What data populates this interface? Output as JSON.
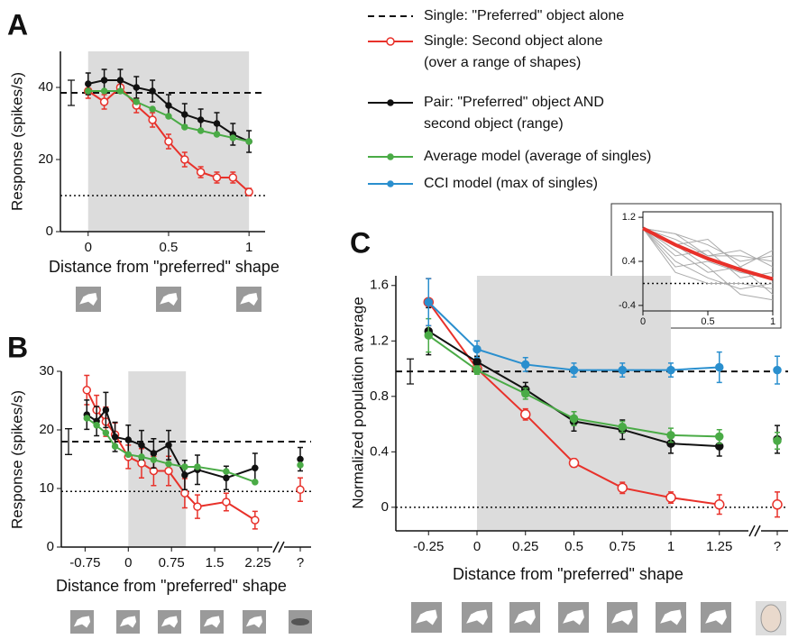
{
  "chart_data": [
    {
      "type": "line",
      "panel_label": "A",
      "xlabel": "Distance from \"preferred\" shape",
      "ylabel": "Response (spikes/s)",
      "xlim": [
        -0.15,
        1.1
      ],
      "ylim": [
        0,
        50
      ],
      "xticks": [
        0,
        0.5,
        1
      ],
      "yticks": [
        0,
        20,
        40
      ],
      "shaded_range": [
        0,
        1
      ],
      "reference_lines": [
        {
          "value": 38.5,
          "style": "dashed",
          "error": 3.5
        },
        {
          "value": 10,
          "style": "dotted"
        }
      ],
      "x": [
        0,
        0.1,
        0.2,
        0.3,
        0.4,
        0.5,
        0.6,
        0.7,
        0.8,
        0.9,
        1
      ],
      "series": [
        {
          "color": "#e8312a",
          "marker": "open",
          "values": [
            39,
            36,
            40,
            35,
            31,
            25,
            20,
            16.5,
            15,
            15,
            11
          ],
          "errors": [
            2,
            2,
            1.5,
            2,
            2,
            2,
            2,
            1.5,
            1.5,
            1.5,
            1
          ]
        },
        {
          "color": "#111111",
          "marker": "filled",
          "values": [
            41,
            42,
            42,
            40,
            39,
            35,
            32.5,
            31,
            30,
            27,
            25
          ],
          "errors": [
            3,
            3,
            3,
            3,
            3,
            3,
            3,
            3,
            3,
            3,
            3
          ]
        },
        {
          "color": "#4aab46",
          "marker": "filled",
          "values": [
            39,
            39,
            39,
            36,
            34,
            32,
            29,
            28,
            27,
            26,
            25
          ]
        }
      ]
    },
    {
      "type": "line",
      "panel_label": "B",
      "xlabel": "Distance from \"preferred\" shape",
      "ylabel": "Response (spikes/s)",
      "xlim": [
        -1.1,
        2.5
      ],
      "ylim": [
        0,
        30
      ],
      "xticks": [
        -0.75,
        0,
        0.75,
        1.5,
        2.25
      ],
      "yticks": [
        0,
        10,
        20,
        30
      ],
      "shaded_range": [
        0,
        1
      ],
      "unknown_label": "?",
      "reference_lines": [
        {
          "value": 18,
          "style": "dashed",
          "error": 2.2
        },
        {
          "value": 9.5,
          "style": "dotted"
        }
      ],
      "x": [
        -0.72,
        -0.55,
        -0.39,
        -0.23,
        0,
        0.23,
        0.44,
        0.7,
        0.98,
        1.2,
        1.7,
        2.2
      ],
      "series": [
        {
          "color": "#e8312a",
          "marker": "open",
          "values": [
            26.8,
            23.4,
            21.4,
            19.2,
            15.4,
            14.3,
            13,
            13,
            9.2,
            6.9,
            7.7,
            4.6
          ],
          "errors": [
            2.5,
            2.5,
            2.5,
            2,
            2,
            2.5,
            2.5,
            2.5,
            2.5,
            2,
            1.5,
            1.5
          ],
          "unknown_value": 9.8,
          "unknown_error": 2
        },
        {
          "color": "#111111",
          "marker": "filled",
          "values": [
            22.6,
            21.5,
            23.4,
            18.8,
            18.3,
            17.4,
            16,
            17.4,
            12.3,
            13.2,
            11.8,
            13.5
          ],
          "errors": [
            2.5,
            2.5,
            3,
            2.5,
            2.5,
            2.5,
            2.5,
            2.5,
            2.5,
            2.5,
            2,
            2.5
          ],
          "unknown_value": 15,
          "unknown_error": 2
        },
        {
          "color": "#4aab46",
          "marker": "filled",
          "values": [
            22,
            20.8,
            19.5,
            17.2,
            15.8,
            15.4,
            14.9,
            14.2,
            13.7,
            13.7,
            12.9,
            11.1
          ],
          "unknown_value": 14
        }
      ]
    },
    {
      "type": "line",
      "panel_label": "C",
      "xlabel": "Distance from \"preferred\" shape",
      "ylabel": "Normalized population average",
      "xlim": [
        -0.4,
        1.4
      ],
      "ylim": [
        -0.17,
        1.67
      ],
      "xticks": [
        -0.25,
        0,
        0.25,
        0.5,
        0.75,
        1,
        1.25
      ],
      "yticks": [
        0,
        0.4,
        0.8,
        1.2,
        1.6
      ],
      "shaded_range": [
        0,
        1
      ],
      "unknown_label": "?",
      "reference_lines": [
        {
          "name": "Single:  \"Preferred\" object alone",
          "value": 0.98,
          "style": "dashed",
          "error": 0.09
        },
        {
          "value": 0,
          "style": "dotted"
        }
      ],
      "x": [
        -0.25,
        0,
        0.25,
        0.5,
        0.75,
        1,
        1.25
      ],
      "series": [
        {
          "name": "Single:  Second object alone\n(over a range of shapes)",
          "color": "#e8312a",
          "marker": "open",
          "values": [
            1.48,
            1.0,
            0.67,
            0.32,
            0.14,
            0.07,
            0.02
          ],
          "errors": [
            0.17,
            0.03,
            0.04,
            0.03,
            0.04,
            0.04,
            0.07
          ],
          "unknown_value": 0.02,
          "unknown_error": 0.09
        },
        {
          "name": "Pair:  \"Preferred\" object AND\nsecond object (range)",
          "color": "#111111",
          "marker": "filled",
          "values": [
            1.27,
            1.05,
            0.85,
            0.62,
            0.56,
            0.46,
            0.44
          ],
          "errors": [
            0.17,
            0.04,
            0.05,
            0.07,
            0.07,
            0.07,
            0.07
          ],
          "unknown_value": 0.49,
          "unknown_error": 0.1
        },
        {
          "name": "Average model (average of singles)",
          "color": "#4aab46",
          "marker": "filled",
          "values": [
            1.24,
            0.99,
            0.82,
            0.64,
            0.58,
            0.52,
            0.51
          ],
          "errors": [
            0.12,
            0.03,
            0.04,
            0.05,
            0.04,
            0.05,
            0.05
          ],
          "unknown_value": 0.48,
          "unknown_error": 0.06
        },
        {
          "name": "CCI model (max  of singles)",
          "color": "#2a8fce",
          "marker": "filled",
          "values": [
            1.48,
            1.14,
            1.03,
            0.99,
            0.99,
            0.99,
            1.01
          ],
          "errors": [
            0.17,
            0.06,
            0.05,
            0.05,
            0.05,
            0.05,
            0.11
          ],
          "unknown_value": 0.99,
          "unknown_error": 0.1
        }
      ]
    },
    {
      "type": "line",
      "xlim": [
        0,
        1
      ],
      "ylim": [
        -0.5,
        1.3
      ],
      "xticks": [
        0,
        0.5,
        1
      ],
      "yticks": [
        -0.4,
        0.4,
        1.2
      ],
      "reference_lines": [
        {
          "value": 0,
          "style": "dotted"
        }
      ],
      "x": [
        0,
        0.25,
        0.5,
        0.75,
        1
      ],
      "series": [
        {
          "color": "#aaaaaa",
          "values": [
            1.0,
            0.8,
            0.5,
            0.6,
            0.3
          ]
        },
        {
          "color": "#aaaaaa",
          "values": [
            1.0,
            0.4,
            0.1,
            -0.1,
            0.0
          ]
        },
        {
          "color": "#aaaaaa",
          "values": [
            1.0,
            0.9,
            0.7,
            0.4,
            0.5
          ]
        },
        {
          "color": "#aaaaaa",
          "values": [
            1.0,
            0.6,
            0.2,
            0.3,
            -0.2
          ]
        },
        {
          "color": "#aaaaaa",
          "values": [
            1.0,
            0.5,
            0.6,
            0.1,
            0.2
          ]
        },
        {
          "color": "#aaaaaa",
          "values": [
            1.0,
            0.7,
            0.3,
            -0.2,
            -0.3
          ]
        },
        {
          "color": "#aaaaaa",
          "values": [
            1.0,
            0.3,
            0.4,
            0.2,
            0.1
          ]
        },
        {
          "color": "#aaaaaa",
          "values": [
            1.0,
            0.9,
            0.5,
            0.5,
            0.4
          ]
        },
        {
          "color": "#aaaaaa",
          "values": [
            1.0,
            0.2,
            0.0,
            0.0,
            -0.1
          ]
        },
        {
          "color": "#aaaaaa",
          "values": [
            1.0,
            0.7,
            0.8,
            0.3,
            0.6
          ]
        },
        {
          "color": "#e8312a",
          "line_width": 4,
          "values": [
            1.0,
            0.7,
            0.45,
            0.25,
            0.08
          ]
        }
      ]
    }
  ]
}
